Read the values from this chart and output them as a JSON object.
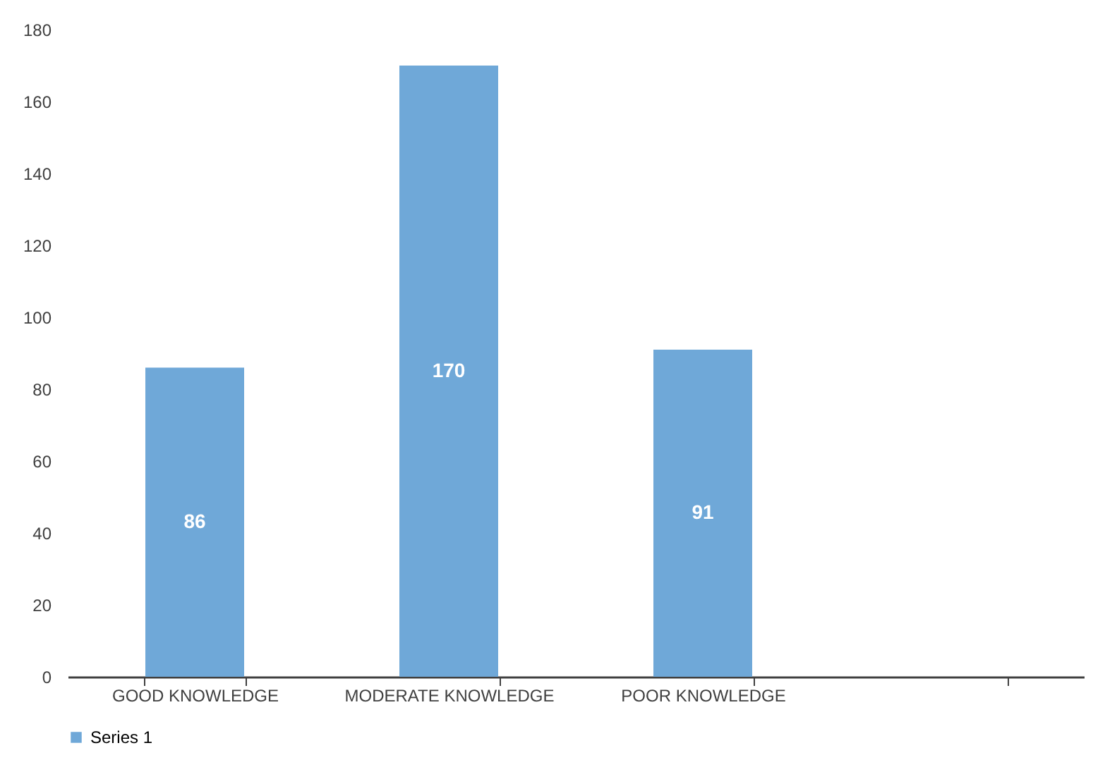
{
  "chart_data": {
    "type": "bar",
    "categories": [
      "GOOD KNOWLEDGE",
      "MODERATE KNOWLEDGE",
      "POOR KNOWLEDGE",
      null
    ],
    "series": [
      {
        "name": "Series 1",
        "color": "#6fa8d8",
        "values": [
          86,
          170,
          91,
          null
        ]
      }
    ],
    "ylim": [
      0,
      180
    ],
    "yticks": [
      0,
      20,
      40,
      60,
      80,
      100,
      120,
      140,
      160,
      180
    ],
    "data_labels": true,
    "legend": "bottom",
    "grid": false
  }
}
